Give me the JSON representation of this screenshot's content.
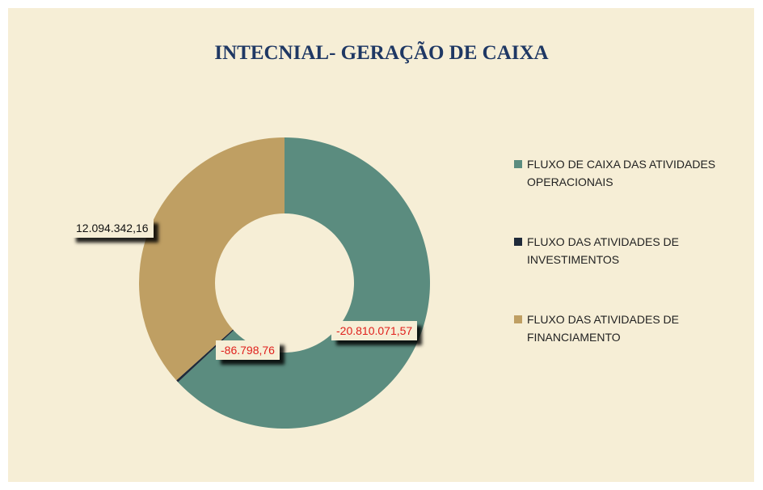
{
  "chart_data": {
    "type": "donut",
    "title": "INTECNIAL- GERAÇÃO DE CAIXA",
    "categories": [
      "FLUXO DE CAIXA DAS ATIVIDADES OPERACIONAIS",
      "FLUXO DAS ATIVIDADES DE INVESTIMENTOS",
      "FLUXO DAS ATIVIDADES DE FINANCIAMENTO"
    ],
    "values": [
      -20810071.57,
      -86798.76,
      12094342.16
    ],
    "value_labels": [
      "-20.810.071,57",
      "-86.798,76",
      "12.094.342,16"
    ],
    "colors": [
      "#5b8c7f",
      "#1f2a3a",
      "#bf9f63"
    ],
    "legend": "right"
  }
}
